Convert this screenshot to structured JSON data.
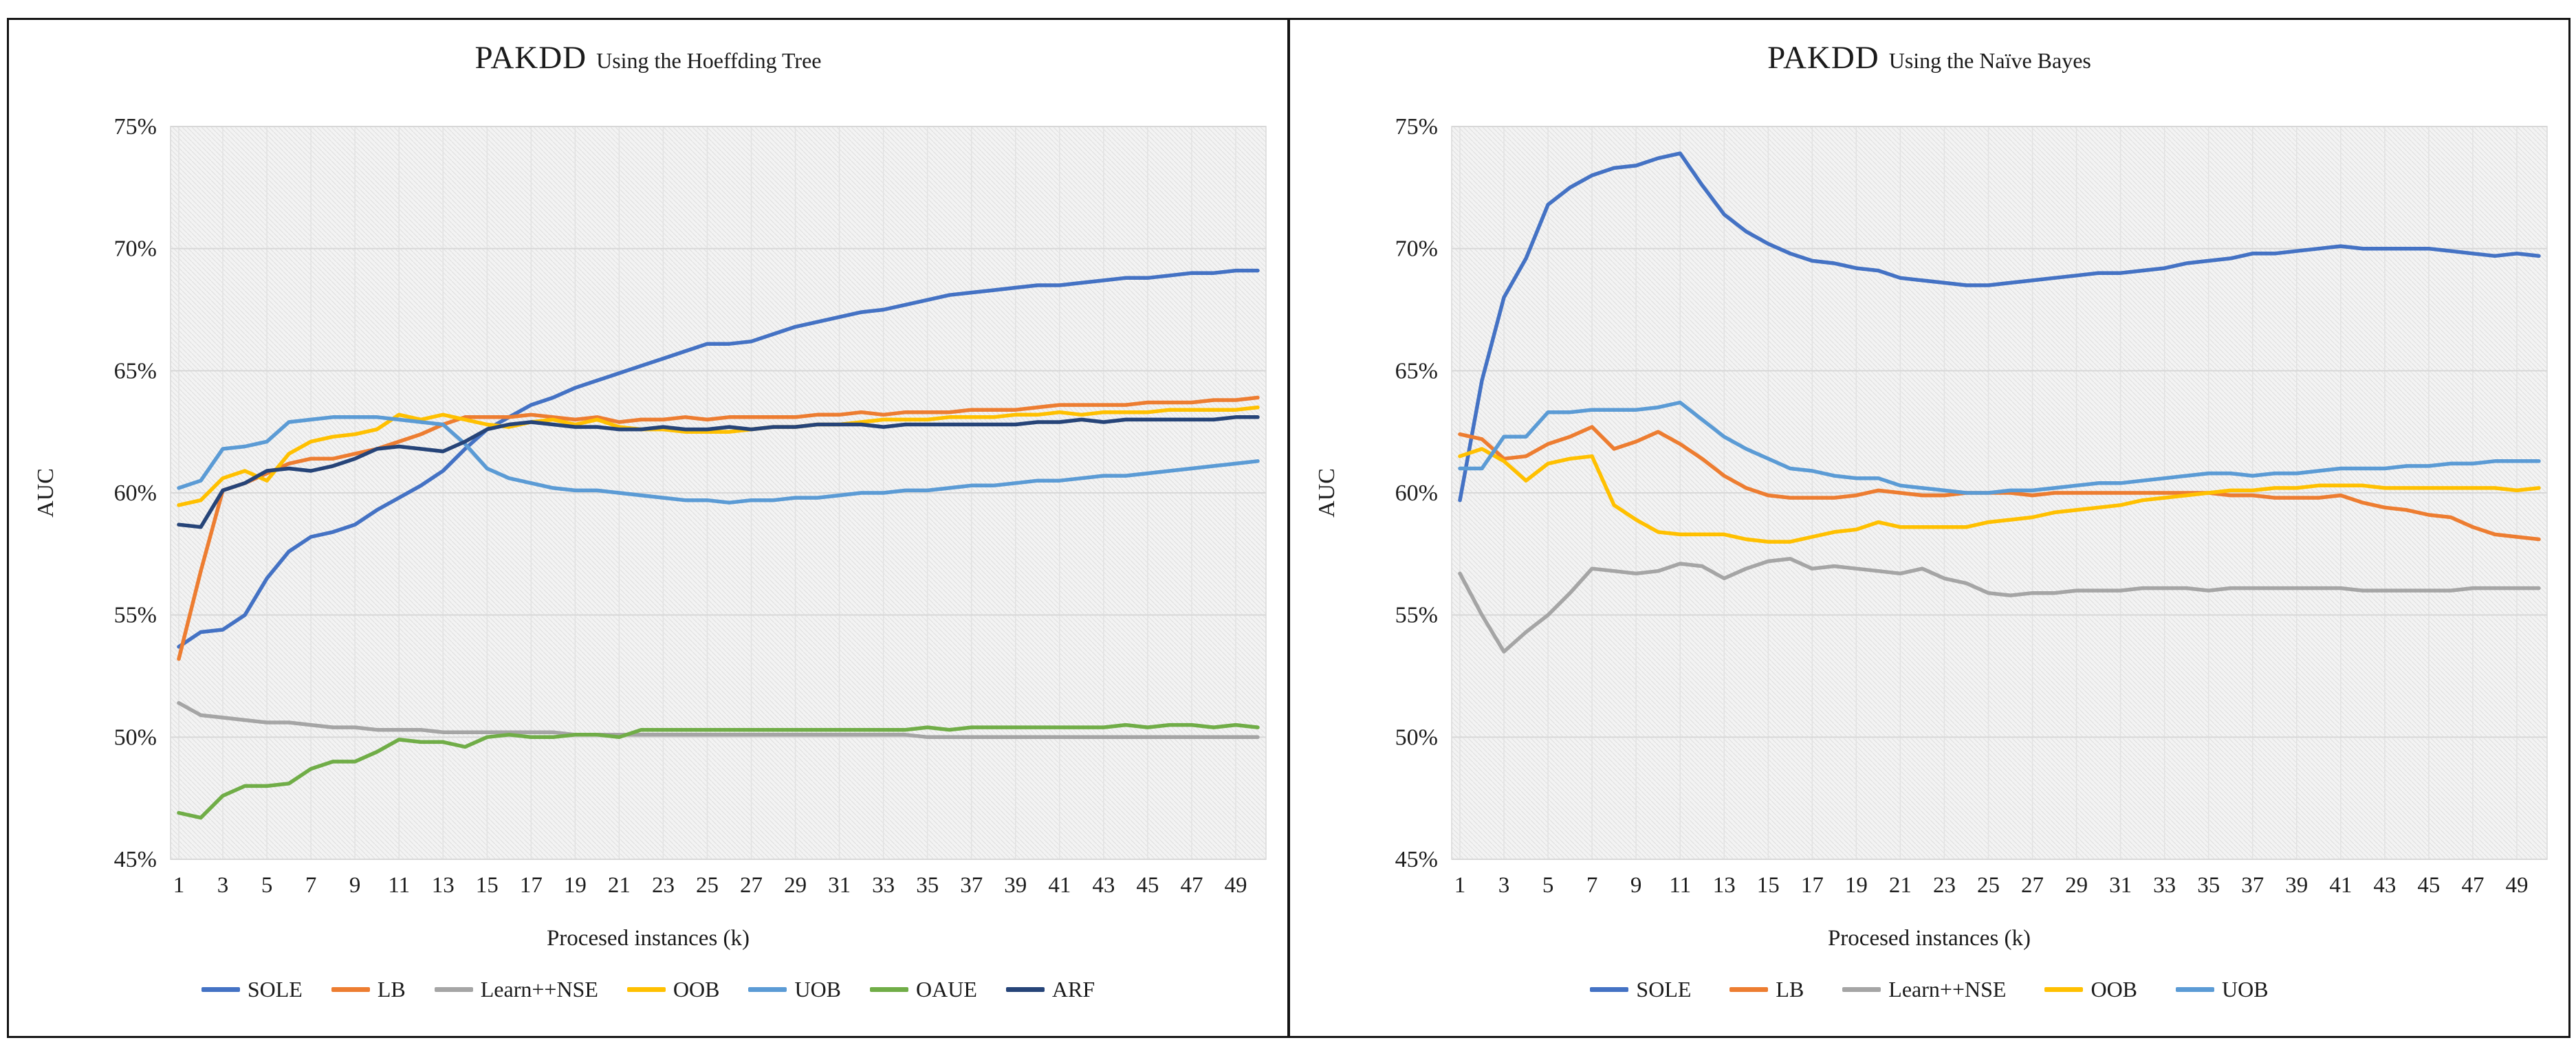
{
  "figure": {
    "y_axis_label": "AUC",
    "x_axis_label": "Procesed instances (k)",
    "y_ticks": [
      {
        "label": "75%",
        "value": 75
      },
      {
        "label": "70%",
        "value": 70
      },
      {
        "label": "65%",
        "value": 65
      },
      {
        "label": "60%",
        "value": 60
      },
      {
        "label": "55%",
        "value": 55
      },
      {
        "label": "50%",
        "value": 50
      },
      {
        "label": "45%",
        "value": 45
      }
    ],
    "x_ticks": [
      1,
      3,
      5,
      7,
      9,
      11,
      13,
      15,
      17,
      19,
      21,
      23,
      25,
      27,
      29,
      31,
      33,
      35,
      37,
      39,
      41,
      43,
      45,
      47,
      49
    ],
    "colors": {
      "SOLE": "#4472C4",
      "LB": "#ED7D31",
      "LearnNSE": "#A5A5A5",
      "OOB": "#FFC000",
      "UOB": "#5B9BD5",
      "OAUE": "#70AD47",
      "ARF": "#264478",
      "gridline": "#d8d8d8",
      "plot_bg": "#f3f3f3",
      "hatch_line": "#e1e1e1"
    }
  },
  "chart_data": [
    {
      "type": "line",
      "title_main": "PAKDD",
      "title_sub": "Using the Hoeffding Tree",
      "xlabel": "Procesed instances (k)",
      "ylabel": "AUC",
      "x_start": 1,
      "x_step": 1,
      "xlim": [
        1,
        50
      ],
      "ylim": [
        45,
        75
      ],
      "grid": true,
      "legend_position": "bottom",
      "series": [
        {
          "name": "SOLE",
          "color": "#4472C4",
          "values": [
            53.7,
            54.3,
            54.4,
            55.0,
            56.5,
            57.6,
            58.2,
            58.4,
            58.7,
            59.3,
            59.8,
            60.3,
            60.9,
            61.8,
            62.6,
            63.1,
            63.6,
            63.9,
            64.3,
            64.6,
            64.9,
            65.2,
            65.5,
            65.8,
            66.1,
            66.1,
            66.2,
            66.5,
            66.8,
            67.0,
            67.2,
            67.4,
            67.5,
            67.7,
            67.9,
            68.1,
            68.2,
            68.3,
            68.4,
            68.5,
            68.5,
            68.6,
            68.7,
            68.8,
            68.8,
            68.9,
            69.0,
            69.0,
            69.1,
            69.1
          ]
        },
        {
          "name": "LB",
          "color": "#ED7D31",
          "values": [
            53.2,
            56.8,
            60.1,
            60.4,
            60.8,
            61.2,
            61.4,
            61.4,
            61.6,
            61.8,
            62.1,
            62.4,
            62.8,
            63.1,
            63.1,
            63.1,
            63.2,
            63.1,
            63.0,
            63.1,
            62.9,
            63.0,
            63.0,
            63.1,
            63.0,
            63.1,
            63.1,
            63.1,
            63.1,
            63.2,
            63.2,
            63.3,
            63.2,
            63.3,
            63.3,
            63.3,
            63.4,
            63.4,
            63.4,
            63.5,
            63.6,
            63.6,
            63.6,
            63.6,
            63.7,
            63.7,
            63.7,
            63.8,
            63.8,
            63.9
          ]
        },
        {
          "name": "Learn++NSE",
          "color": "#A5A5A5",
          "values": [
            51.4,
            50.9,
            50.8,
            50.7,
            50.6,
            50.6,
            50.5,
            50.4,
            50.4,
            50.3,
            50.3,
            50.3,
            50.2,
            50.2,
            50.2,
            50.2,
            50.2,
            50.2,
            50.1,
            50.1,
            50.1,
            50.1,
            50.1,
            50.1,
            50.1,
            50.1,
            50.1,
            50.1,
            50.1,
            50.1,
            50.1,
            50.1,
            50.1,
            50.1,
            50.0,
            50.0,
            50.0,
            50.0,
            50.0,
            50.0,
            50.0,
            50.0,
            50.0,
            50.0,
            50.0,
            50.0,
            50.0,
            50.0,
            50.0,
            50.0
          ]
        },
        {
          "name": "OOB",
          "color": "#FFC000",
          "values": [
            59.5,
            59.7,
            60.6,
            60.9,
            60.5,
            61.6,
            62.1,
            62.3,
            62.4,
            62.6,
            63.2,
            63.0,
            63.2,
            63.0,
            62.8,
            62.7,
            62.9,
            63.0,
            62.8,
            63.0,
            62.7,
            62.6,
            62.6,
            62.5,
            62.5,
            62.5,
            62.6,
            62.7,
            62.7,
            62.8,
            62.8,
            62.9,
            63.0,
            63.0,
            63.0,
            63.1,
            63.1,
            63.1,
            63.2,
            63.2,
            63.3,
            63.2,
            63.3,
            63.3,
            63.3,
            63.4,
            63.4,
            63.4,
            63.4,
            63.5
          ]
        },
        {
          "name": "UOB",
          "color": "#5B9BD5",
          "values": [
            60.2,
            60.5,
            61.8,
            61.9,
            62.1,
            62.9,
            63.0,
            63.1,
            63.1,
            63.1,
            63.0,
            62.9,
            62.8,
            62.0,
            61.0,
            60.6,
            60.4,
            60.2,
            60.1,
            60.1,
            60.0,
            59.9,
            59.8,
            59.7,
            59.7,
            59.6,
            59.7,
            59.7,
            59.8,
            59.8,
            59.9,
            60.0,
            60.0,
            60.1,
            60.1,
            60.2,
            60.3,
            60.3,
            60.4,
            60.5,
            60.5,
            60.6,
            60.7,
            60.7,
            60.8,
            60.9,
            61.0,
            61.1,
            61.2,
            61.3
          ]
        },
        {
          "name": "OAUE",
          "color": "#70AD47",
          "values": [
            46.9,
            46.7,
            47.6,
            48.0,
            48.0,
            48.1,
            48.7,
            49.0,
            49.0,
            49.4,
            49.9,
            49.8,
            49.8,
            49.6,
            50.0,
            50.1,
            50.0,
            50.0,
            50.1,
            50.1,
            50.0,
            50.3,
            50.3,
            50.3,
            50.3,
            50.3,
            50.3,
            50.3,
            50.3,
            50.3,
            50.3,
            50.3,
            50.3,
            50.3,
            50.4,
            50.3,
            50.4,
            50.4,
            50.4,
            50.4,
            50.4,
            50.4,
            50.4,
            50.5,
            50.4,
            50.5,
            50.5,
            50.4,
            50.5,
            50.4
          ]
        },
        {
          "name": "ARF",
          "color": "#264478",
          "values": [
            58.7,
            58.6,
            60.1,
            60.4,
            60.9,
            61.0,
            60.9,
            61.1,
            61.4,
            61.8,
            61.9,
            61.8,
            61.7,
            62.1,
            62.6,
            62.8,
            62.9,
            62.8,
            62.7,
            62.7,
            62.6,
            62.6,
            62.7,
            62.6,
            62.6,
            62.7,
            62.6,
            62.7,
            62.7,
            62.8,
            62.8,
            62.8,
            62.7,
            62.8,
            62.8,
            62.8,
            62.8,
            62.8,
            62.8,
            62.9,
            62.9,
            63.0,
            62.9,
            63.0,
            63.0,
            63.0,
            63.0,
            63.0,
            63.1,
            63.1
          ]
        }
      ]
    },
    {
      "type": "line",
      "title_main": "PAKDD",
      "title_sub": "Using the Naïve Bayes",
      "xlabel": "Procesed instances (k)",
      "ylabel": "AUC",
      "x_start": 1,
      "x_step": 1,
      "xlim": [
        1,
        50
      ],
      "ylim": [
        45,
        75
      ],
      "grid": true,
      "legend_position": "bottom",
      "series": [
        {
          "name": "SOLE",
          "color": "#4472C4",
          "values": [
            59.7,
            64.6,
            68.0,
            69.6,
            71.8,
            72.5,
            73.0,
            73.3,
            73.4,
            73.7,
            73.9,
            72.6,
            71.4,
            70.7,
            70.2,
            69.8,
            69.5,
            69.4,
            69.2,
            69.1,
            68.8,
            68.7,
            68.6,
            68.5,
            68.5,
            68.6,
            68.7,
            68.8,
            68.9,
            69.0,
            69.0,
            69.1,
            69.2,
            69.4,
            69.5,
            69.6,
            69.8,
            69.8,
            69.9,
            70.0,
            70.1,
            70.0,
            70.0,
            70.0,
            70.0,
            69.9,
            69.8,
            69.7,
            69.8,
            69.7
          ]
        },
        {
          "name": "LB",
          "color": "#ED7D31",
          "values": [
            62.4,
            62.2,
            61.4,
            61.5,
            62.0,
            62.3,
            62.7,
            61.8,
            62.1,
            62.5,
            62.0,
            61.4,
            60.7,
            60.2,
            59.9,
            59.8,
            59.8,
            59.8,
            59.9,
            60.1,
            60.0,
            59.9,
            59.9,
            60.0,
            60.0,
            60.0,
            59.9,
            60.0,
            60.0,
            60.0,
            60.0,
            60.0,
            60.0,
            60.0,
            60.0,
            59.9,
            59.9,
            59.8,
            59.8,
            59.8,
            59.9,
            59.6,
            59.4,
            59.3,
            59.1,
            59.0,
            58.6,
            58.3,
            58.2,
            58.1
          ]
        },
        {
          "name": "Learn++NSE",
          "color": "#A5A5A5",
          "values": [
            56.7,
            55.0,
            53.5,
            54.3,
            55.0,
            55.9,
            56.9,
            56.8,
            56.7,
            56.8,
            57.1,
            57.0,
            56.5,
            56.9,
            57.2,
            57.3,
            56.9,
            57.0,
            56.9,
            56.8,
            56.7,
            56.9,
            56.5,
            56.3,
            55.9,
            55.8,
            55.9,
            55.9,
            56.0,
            56.0,
            56.0,
            56.1,
            56.1,
            56.1,
            56.0,
            56.1,
            56.1,
            56.1,
            56.1,
            56.1,
            56.1,
            56.0,
            56.0,
            56.0,
            56.0,
            56.0,
            56.1,
            56.1,
            56.1,
            56.1
          ]
        },
        {
          "name": "OOB",
          "color": "#FFC000",
          "values": [
            61.5,
            61.8,
            61.3,
            60.5,
            61.2,
            61.4,
            61.5,
            59.5,
            58.9,
            58.4,
            58.3,
            58.3,
            58.3,
            58.1,
            58.0,
            58.0,
            58.2,
            58.4,
            58.5,
            58.8,
            58.6,
            58.6,
            58.6,
            58.6,
            58.8,
            58.9,
            59.0,
            59.2,
            59.3,
            59.4,
            59.5,
            59.7,
            59.8,
            59.9,
            60.0,
            60.1,
            60.1,
            60.2,
            60.2,
            60.3,
            60.3,
            60.3,
            60.2,
            60.2,
            60.2,
            60.2,
            60.2,
            60.2,
            60.1,
            60.2
          ]
        },
        {
          "name": "UOB",
          "color": "#5B9BD5",
          "values": [
            61.0,
            61.0,
            62.3,
            62.3,
            63.3,
            63.3,
            63.4,
            63.4,
            63.4,
            63.5,
            63.7,
            63.0,
            62.3,
            61.8,
            61.4,
            61.0,
            60.9,
            60.7,
            60.6,
            60.6,
            60.3,
            60.2,
            60.1,
            60.0,
            60.0,
            60.1,
            60.1,
            60.2,
            60.3,
            60.4,
            60.4,
            60.5,
            60.6,
            60.7,
            60.8,
            60.8,
            60.7,
            60.8,
            60.8,
            60.9,
            61.0,
            61.0,
            61.0,
            61.1,
            61.1,
            61.2,
            61.2,
            61.3,
            61.3,
            61.3
          ]
        }
      ]
    }
  ]
}
